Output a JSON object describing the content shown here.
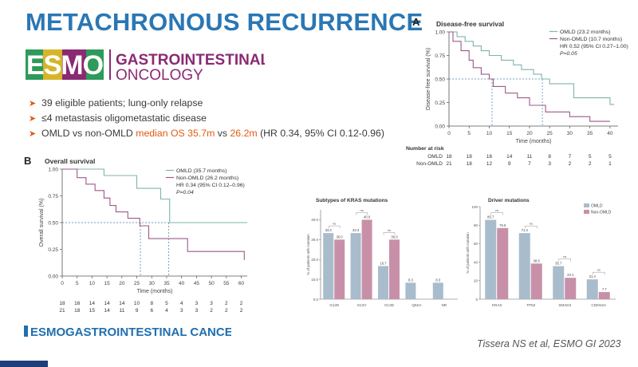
{
  "slide": {
    "title": "METACHRONOUS RECURRENCE",
    "logo": {
      "mark": "ESMO",
      "line1": "GASTROINTESTINAL",
      "line2": "ONCOLOGY"
    },
    "bullets": {
      "b1": "39 eligible patients; lung-only relapse",
      "b2": "≤4 metastasis oligometastatic disease",
      "b3_pre": "OMLD vs non-OMLD ",
      "b3_hl": "median OS 35.7m",
      "b3_mid": " vs ",
      "b3_hl2": "26.2m",
      "b3_post": " (HR 0.34, 95% CI 0.12-0.96)"
    },
    "footer_logo": {
      "mark": "ESMO",
      "text": "GASTROINTESTINAL CANCERS"
    },
    "citation": "Tissera NS et al, ESMO GI 2023"
  },
  "colors": {
    "title": "#2a77b4",
    "accent": "#e05a10",
    "omld": "#7fb3ad",
    "nonomld": "#9b5a8a",
    "bar_omld": "#a9bccb",
    "bar_non": "#c890a8",
    "logo_green": "#2e9a5b",
    "logo_purple": "#8a2a73"
  },
  "chart_data": [
    {
      "id": "A",
      "type": "line",
      "step": true,
      "panel_label": "A",
      "title": "Disease-free survival",
      "xlabel": "Time (months)",
      "ylabel": "Disease-free survival (%)",
      "xlim": [
        0,
        42
      ],
      "ylim": [
        0,
        1
      ],
      "xticks": [
        0,
        5,
        10,
        15,
        20,
        25,
        30,
        35,
        40
      ],
      "yticks": [
        "0.00",
        "0.25",
        "0.50",
        "0.75",
        "1.00"
      ],
      "legend": {
        "omld": "OMLD (23.2 months)",
        "non": "Non-OMLD (10.7 months)",
        "hr": "HR 0.52 (95% CI 0.27–1.00)",
        "p": "P=0.05"
      },
      "median_lines": [
        10.7,
        23.2
      ],
      "series": [
        {
          "name": "OMLD",
          "color": "#7fb3ad",
          "points": [
            [
              0,
              1.0
            ],
            [
              2,
              1.0
            ],
            [
              2,
              0.95
            ],
            [
              4,
              0.95
            ],
            [
              4,
              0.9
            ],
            [
              6,
              0.9
            ],
            [
              6,
              0.85
            ],
            [
              8,
              0.85
            ],
            [
              8,
              0.8
            ],
            [
              10,
              0.8
            ],
            [
              10,
              0.75
            ],
            [
              13,
              0.75
            ],
            [
              13,
              0.7
            ],
            [
              16,
              0.7
            ],
            [
              16,
              0.65
            ],
            [
              18,
              0.65
            ],
            [
              18,
              0.6
            ],
            [
              21,
              0.6
            ],
            [
              21,
              0.55
            ],
            [
              23,
              0.55
            ],
            [
              23,
              0.5
            ],
            [
              25,
              0.5
            ],
            [
              25,
              0.45
            ],
            [
              31,
              0.45
            ],
            [
              31,
              0.3
            ],
            [
              40,
              0.3
            ],
            [
              40,
              0.23
            ],
            [
              41,
              0.23
            ]
          ]
        },
        {
          "name": "Non-OMLD",
          "color": "#9b5a8a",
          "points": [
            [
              0,
              1.0
            ],
            [
              1,
              1.0
            ],
            [
              1,
              0.9
            ],
            [
              3,
              0.9
            ],
            [
              3,
              0.8
            ],
            [
              5,
              0.8
            ],
            [
              5,
              0.7
            ],
            [
              6,
              0.7
            ],
            [
              6,
              0.62
            ],
            [
              8,
              0.62
            ],
            [
              8,
              0.55
            ],
            [
              10,
              0.55
            ],
            [
              10,
              0.5
            ],
            [
              11,
              0.5
            ],
            [
              11,
              0.42
            ],
            [
              14,
              0.42
            ],
            [
              14,
              0.35
            ],
            [
              17,
              0.35
            ],
            [
              17,
              0.3
            ],
            [
              20,
              0.3
            ],
            [
              20,
              0.22
            ],
            [
              24,
              0.22
            ],
            [
              24,
              0.15
            ],
            [
              30,
              0.15
            ],
            [
              30,
              0.1
            ],
            [
              35,
              0.1
            ],
            [
              35,
              0.05
            ],
            [
              40,
              0.05
            ]
          ]
        }
      ],
      "risk_table": {
        "title": "Number at risk",
        "rows": [
          {
            "label": "OMLD",
            "values": [
              "18",
              "18",
              "16",
              "14",
              "11",
              "8",
              "7",
              "5",
              "5"
            ]
          },
          {
            "label": "Non-OMLD",
            "values": [
              "21",
              "18",
              "12",
              "9",
              "7",
              "3",
              "2",
              "2",
              "1"
            ]
          }
        ]
      }
    },
    {
      "id": "B",
      "type": "line",
      "step": true,
      "panel_label": "B",
      "title": "Overall survival",
      "xlabel": "Time (months)",
      "ylabel": "Overall survival (%)",
      "xlim": [
        0,
        62
      ],
      "ylim": [
        0,
        1
      ],
      "xticks": [
        0,
        5,
        10,
        15,
        20,
        25,
        30,
        35,
        40,
        45,
        50,
        55,
        60
      ],
      "yticks": [
        "0.00",
        "0.25",
        "0.50",
        "0.75",
        "1.00"
      ],
      "legend": {
        "omld": "OMLD (35.7 months)",
        "non": "Non-OMLD (26.2 months)",
        "hr": "HR 0.34 (95% CI 0.12–0.96)",
        "p": "P=0.04"
      },
      "median_lines": [
        26.2,
        35.7
      ],
      "series": [
        {
          "name": "OMLD",
          "color": "#7fb3ad",
          "points": [
            [
              0,
              1.0
            ],
            [
              14,
              1.0
            ],
            [
              14,
              0.94
            ],
            [
              25,
              0.94
            ],
            [
              25,
              0.82
            ],
            [
              33,
              0.82
            ],
            [
              33,
              0.72
            ],
            [
              36,
              0.72
            ],
            [
              36,
              0.5
            ],
            [
              62,
              0.5
            ]
          ]
        },
        {
          "name": "Non-OMLD",
          "color": "#9b5a8a",
          "points": [
            [
              0,
              1.0
            ],
            [
              5,
              1.0
            ],
            [
              5,
              0.92
            ],
            [
              8,
              0.92
            ],
            [
              8,
              0.86
            ],
            [
              11,
              0.86
            ],
            [
              11,
              0.8
            ],
            [
              14,
              0.8
            ],
            [
              14,
              0.73
            ],
            [
              16,
              0.73
            ],
            [
              16,
              0.66
            ],
            [
              18,
              0.66
            ],
            [
              18,
              0.6
            ],
            [
              22,
              0.6
            ],
            [
              22,
              0.54
            ],
            [
              26,
              0.54
            ],
            [
              26,
              0.47
            ],
            [
              29,
              0.47
            ],
            [
              29,
              0.35
            ],
            [
              42,
              0.35
            ],
            [
              42,
              0.23
            ],
            [
              61,
              0.23
            ],
            [
              61,
              0.15
            ]
          ]
        }
      ],
      "risk_rows": [
        [
          "18",
          "16",
          "14",
          "14",
          "14",
          "10",
          "8",
          "5",
          "4",
          "3",
          "3",
          "2",
          "2"
        ],
        [
          "21",
          "18",
          "15",
          "14",
          "11",
          "9",
          "6",
          "4",
          "3",
          "3",
          "2",
          "2",
          "2"
        ]
      ]
    },
    {
      "id": "kras",
      "type": "bar",
      "title": "Subtypes of KRAS mutations",
      "ylabel": "% of patients with mutation",
      "ylim": [
        0,
        45
      ],
      "yticks": [
        0,
        10,
        20,
        30,
        40
      ],
      "categories": [
        "G12D",
        "G12V",
        "G13D",
        "Q61H",
        "NR"
      ],
      "series": [
        {
          "name": "OMLD",
          "color": "#a9bccb",
          "values": [
            33.3,
            33.3,
            16.7,
            8.3,
            8.3
          ],
          "labels": [
            "33.3",
            "33.3",
            "16.7",
            "8.3",
            "8.3"
          ]
        },
        {
          "name": "Non-OMLD",
          "color": "#c890a8",
          "values": [
            30.0,
            40.0,
            30.0,
            null,
            null
          ],
          "labels": [
            "30.0",
            "40.0",
            "30.0",
            "",
            ""
          ]
        }
      ],
      "annotation": "ns"
    },
    {
      "id": "driver",
      "type": "bar",
      "title": "Driver mutations",
      "ylabel": "% of patients with mutation",
      "ylim": [
        0,
        100
      ],
      "yticks": [
        0,
        20,
        40,
        60,
        80,
        100
      ],
      "categories": [
        "KRAS",
        "TP53",
        "SMAD4",
        "CDKN2A"
      ],
      "legend": {
        "omld": "OMLD",
        "non": "Non-OMLD"
      },
      "series": [
        {
          "name": "OMLD",
          "color": "#a9bccb",
          "values": [
            85.7,
            71.4,
            35.7,
            21.4
          ],
          "labels": [
            "85.7",
            "71.4",
            "35.7",
            "21.4"
          ]
        },
        {
          "name": "Non-OMLD",
          "color": "#c890a8",
          "values": [
            76.9,
            38.5,
            23.1,
            7.7
          ],
          "labels": [
            "76.9",
            "38.5",
            "23.1",
            "7.7"
          ]
        }
      ],
      "annotation": "ns"
    }
  ]
}
